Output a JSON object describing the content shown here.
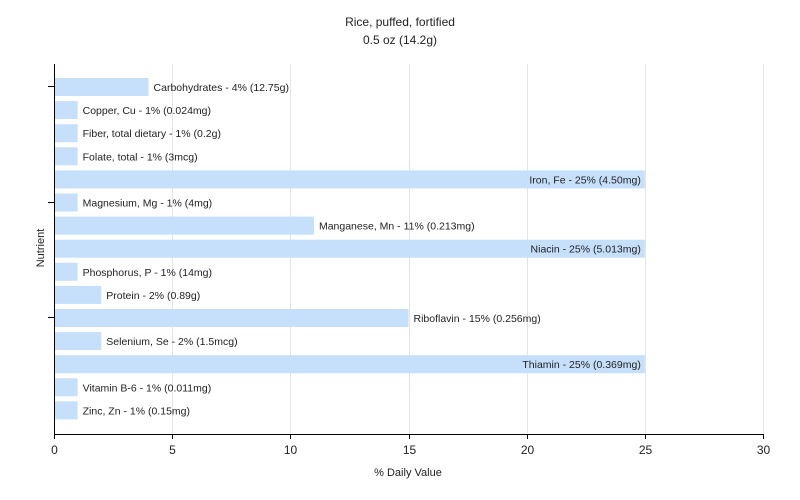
{
  "chart_data": {
    "type": "bar",
    "orientation": "horizontal",
    "title": "Rice, puffed, fortified",
    "subtitle": "0.5 oz (14.2g)",
    "xlabel": "% Daily Value",
    "ylabel": "Nutrient",
    "xlim": [
      0,
      30
    ],
    "xticks": [
      0,
      5,
      10,
      15,
      20,
      25,
      30
    ],
    "grid": true,
    "bar_color": "#c6dffb",
    "categories": [
      "Carbohydrates",
      "Copper, Cu",
      "Fiber, total dietary",
      "Folate, total",
      "Iron, Fe",
      "Magnesium, Mg",
      "Manganese, Mn",
      "Niacin",
      "Phosphorus, P",
      "Protein",
      "Riboflavin",
      "Selenium, Se",
      "Thiamin",
      "Vitamin B-6",
      "Zinc, Zn"
    ],
    "values": [
      4,
      1,
      1,
      1,
      25,
      1,
      11,
      25,
      1,
      2,
      15,
      2,
      25,
      1,
      1
    ],
    "labels": [
      "Carbohydrates - 4% (12.75g)",
      "Copper, Cu - 1% (0.024mg)",
      "Fiber, total dietary - 1% (0.2g)",
      "Folate, total - 1% (3mcg)",
      "Iron, Fe - 25% (4.50mg)",
      "Magnesium, Mg - 1% (4mg)",
      "Manganese, Mn - 11% (0.213mg)",
      "Niacin - 25% (5.013mg)",
      "Phosphorus, P - 1% (14mg)",
      "Protein - 2% (0.89g)",
      "Riboflavin - 15% (0.256mg)",
      "Selenium, Se - 2% (1.5mcg)",
      "Thiamin - 25% (0.369mg)",
      "Vitamin B-6 - 1% (0.011mg)",
      "Zinc, Zn - 1% (0.15mg)"
    ]
  }
}
